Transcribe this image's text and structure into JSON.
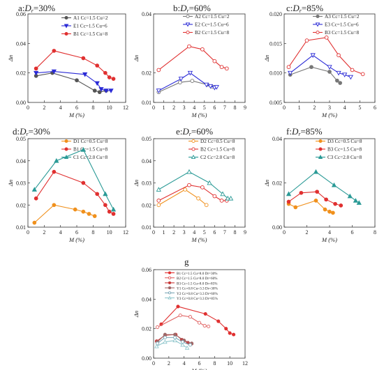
{
  "chart_data": [
    {
      "id": "a",
      "type": "line",
      "title": "a:Dr=30%",
      "xlabel": "M (%)",
      "ylabel": "Δn",
      "xlim": [
        0,
        12
      ],
      "ylim": [
        0,
        0.06
      ],
      "xticks": [
        0,
        2,
        4,
        6,
        8,
        10,
        12
      ],
      "yticks": [
        0.0,
        0.02,
        0.04,
        0.06
      ],
      "legend_position": "top-right",
      "series": [
        {
          "name": "A1 Cc=1.5 Cu=2",
          "color": "#555555",
          "marker": "filled-circle",
          "x": [
            1.0,
            3.0,
            6.0,
            8.2,
            8.8,
            9.6
          ],
          "y": [
            0.018,
            0.02,
            0.015,
            0.008,
            0.007,
            0.008
          ]
        },
        {
          "name": "E1 Cc=1.5 Cu=6",
          "color": "#2a2ad6",
          "marker": "filled-triangle-down",
          "x": [
            1.0,
            3.2,
            7.0,
            8.5,
            9.0,
            9.6,
            10.2
          ],
          "y": [
            0.02,
            0.021,
            0.019,
            0.013,
            0.009,
            0.008,
            0.008
          ]
        },
        {
          "name": "B1 Cc=1.5 Cu=8",
          "color": "#e03030",
          "marker": "filled-circle",
          "x": [
            1.0,
            3.2,
            6.8,
            8.5,
            9.5,
            10.0,
            10.5
          ],
          "y": [
            0.023,
            0.035,
            0.03,
            0.025,
            0.02,
            0.017,
            0.016
          ]
        }
      ]
    },
    {
      "id": "b",
      "type": "line",
      "title": "b:Dr=60%",
      "xlabel": "M (%)",
      "ylabel": "Δn",
      "xlim": [
        0,
        9
      ],
      "ylim": [
        0.01,
        0.04
      ],
      "xticks": [
        0,
        1,
        2,
        3,
        4,
        5,
        6,
        7,
        8,
        9
      ],
      "yticks": [
        0.01,
        0.02,
        0.04
      ],
      "legend_position": "top-right",
      "series": [
        {
          "name": "A2 Cc=1.5 Cu=2",
          "color": "#777777",
          "marker": "open-circle",
          "x": [
            0.5,
            2.6,
            3.8,
            5.3,
            5.8
          ],
          "y": [
            0.0135,
            0.0168,
            0.0173,
            0.016,
            0.0153
          ]
        },
        {
          "name": "E2 Cc=1.5 Cu=6",
          "color": "#2a2ad6",
          "marker": "open-triangle-down",
          "x": [
            0.5,
            2.7,
            3.6,
            5.2,
            5.6,
            6.0,
            6.2
          ],
          "y": [
            0.014,
            0.018,
            0.02,
            0.016,
            0.0155,
            0.015,
            0.0152
          ]
        },
        {
          "name": "B2 Cc=1.5 Cu=8",
          "color": "#e03030",
          "marker": "open-circle",
          "x": [
            0.5,
            3.5,
            4.8,
            6.0,
            6.7,
            7.2
          ],
          "y": [
            0.021,
            0.029,
            0.028,
            0.024,
            0.022,
            0.0215
          ]
        }
      ]
    },
    {
      "id": "c",
      "type": "line",
      "title": "c:Dr=85%",
      "xlabel": "M (%)",
      "ylabel": "Δn",
      "xlim": [
        0,
        6
      ],
      "ylim": [
        0.005,
        0.02
      ],
      "xticks": [
        0,
        1,
        2,
        3,
        4,
        5,
        6
      ],
      "yticks": [
        0.005,
        0.01,
        0.015,
        0.02
      ],
      "legend_position": "top-right",
      "series": [
        {
          "name": "A3 Cc=1.5 Cu=2",
          "color": "#777777",
          "marker": "filled-circle",
          "x": [
            0.4,
            1.8,
            3.0,
            3.5,
            3.7
          ],
          "y": [
            0.0097,
            0.011,
            0.0102,
            0.0087,
            0.0083
          ]
        },
        {
          "name": "E3 Cc=1.5 Cu=6",
          "color": "#2a2ad6",
          "marker": "open-triangle-down",
          "x": [
            0.4,
            1.9,
            3.0,
            3.6,
            4.0,
            4.4
          ],
          "y": [
            0.01,
            0.013,
            0.011,
            0.01,
            0.0097,
            0.0093
          ]
        },
        {
          "name": "B3 Cc=1.5 Cu=8",
          "color": "#e03030",
          "marker": "open-circle",
          "x": [
            0.3,
            1.5,
            2.8,
            3.6,
            4.5,
            5.2
          ],
          "y": [
            0.011,
            0.0155,
            0.016,
            0.013,
            0.0105,
            0.0098
          ]
        }
      ]
    },
    {
      "id": "d",
      "type": "line",
      "title": "d:Dr=30%",
      "xlabel": "M (%)",
      "ylabel": "Δn",
      "xlim": [
        0,
        12
      ],
      "ylim": [
        0.01,
        0.05
      ],
      "xticks": [
        0,
        2,
        4,
        6,
        8,
        10,
        12
      ],
      "yticks": [
        0.01,
        0.02,
        0.03,
        0.04,
        0.05
      ],
      "legend_position": "top-right",
      "series": [
        {
          "name": "D1 Cc=0.5 Cu=8",
          "color": "#f0901c",
          "marker": "filled-circle",
          "x": [
            0.8,
            3.2,
            5.8,
            6.8,
            7.5,
            8.2
          ],
          "y": [
            0.012,
            0.02,
            0.018,
            0.017,
            0.016,
            0.015
          ]
        },
        {
          "name": "B1 Cc=1.5 Cu=8",
          "color": "#e03030",
          "marker": "filled-circle",
          "x": [
            1.0,
            3.2,
            6.8,
            8.5,
            9.5,
            10.0,
            10.5
          ],
          "y": [
            0.023,
            0.035,
            0.03,
            0.025,
            0.02,
            0.017,
            0.016
          ]
        },
        {
          "name": "C1 Cc=2.0 Cu=8",
          "color": "#2a9a96",
          "marker": "filled-triangle-up",
          "x": [
            0.8,
            3.5,
            6.8,
            9.5,
            10.5
          ],
          "y": [
            0.027,
            0.04,
            0.045,
            0.025,
            0.018
          ]
        }
      ]
    },
    {
      "id": "e",
      "type": "line",
      "title": "e:Dr=60%",
      "xlabel": "M (%)",
      "ylabel": "Δn",
      "xlim": [
        0,
        9
      ],
      "ylim": [
        0.01,
        0.05
      ],
      "xticks": [
        0,
        1,
        2,
        3,
        4,
        5,
        6,
        7,
        8,
        9
      ],
      "yticks": [
        0.01,
        0.02,
        0.03,
        0.04,
        0.05
      ],
      "legend_position": "top-right",
      "series": [
        {
          "name": "D2 Cc=0.5 Cu=8",
          "color": "#f0901c",
          "marker": "open-circle",
          "x": [
            0.5,
            3.1,
            4.4,
            5.2
          ],
          "y": [
            0.02,
            0.027,
            0.023,
            0.02
          ]
        },
        {
          "name": "B2 Cc=1.5 Cu=8",
          "color": "#e03030",
          "marker": "open-circle",
          "x": [
            0.5,
            3.5,
            4.8,
            6.0,
            6.7,
            7.2
          ],
          "y": [
            0.022,
            0.029,
            0.028,
            0.024,
            0.022,
            0.022
          ]
        },
        {
          "name": "C2 Cc=2.0 Cu=8",
          "color": "#2a9a96",
          "marker": "open-triangle-up",
          "x": [
            0.5,
            3.5,
            5.5,
            6.8,
            7.3,
            7.6
          ],
          "y": [
            0.027,
            0.035,
            0.03,
            0.025,
            0.023,
            0.023
          ]
        }
      ]
    },
    {
      "id": "f",
      "type": "line",
      "title": "f:Dr=85%",
      "xlabel": "M (%)",
      "ylabel": "Δn",
      "xlim": [
        0,
        8
      ],
      "ylim": [
        0,
        0.04
      ],
      "xticks": [
        0,
        2,
        4,
        6,
        8
      ],
      "yticks": [
        0.0,
        0.02,
        0.04
      ],
      "legend_position": "top-right",
      "series": [
        {
          "name": "D3 Cc=0.5 Cu=8",
          "color": "#f0901c",
          "marker": "filled-circle",
          "x": [
            0.4,
            1.0,
            2.8,
            3.6,
            4.0,
            4.3
          ],
          "y": [
            0.0105,
            0.009,
            0.012,
            0.008,
            0.007,
            0.0065
          ]
        },
        {
          "name": "B3 Cc=1.5 Cu=8",
          "color": "#e03030",
          "marker": "filled-circle",
          "x": [
            0.4,
            1.5,
            2.9,
            3.7,
            4.5,
            5.0
          ],
          "y": [
            0.0115,
            0.0155,
            0.016,
            0.0125,
            0.0105,
            0.0098
          ]
        },
        {
          "name": "C3 Cc=2.0 Cu=8",
          "color": "#2a9a96",
          "marker": "filled-triangle-up",
          "x": [
            0.4,
            2.8,
            4.4,
            5.8,
            6.3,
            6.6
          ],
          "y": [
            0.015,
            0.025,
            0.019,
            0.014,
            0.012,
            0.011
          ]
        }
      ]
    },
    {
      "id": "g",
      "type": "line",
      "title": "g",
      "xlabel": "M (%)",
      "ylabel": "Δn",
      "xlim": [
        0,
        12
      ],
      "ylim": [
        0,
        0.06
      ],
      "xticks": [
        0,
        2,
        4,
        6,
        8,
        10,
        12
      ],
      "yticks": [
        0.0,
        0.02,
        0.04,
        0.06
      ],
      "legend_position": "top-right",
      "series": [
        {
          "name": "B1 Cc=1.5 Cu=8.0 Dr=30%",
          "color": "#e03030",
          "marker": "filled-circle",
          "x": [
            1.0,
            3.2,
            6.8,
            8.5,
            9.5,
            10.0,
            10.5
          ],
          "y": [
            0.023,
            0.035,
            0.03,
            0.025,
            0.02,
            0.017,
            0.016
          ]
        },
        {
          "name": "B2 Cc=1.5 Cu=8.0 Dr=60%",
          "color": "#e06060",
          "marker": "open-circle",
          "x": [
            0.5,
            3.5,
            4.8,
            6.0,
            6.7,
            7.2
          ],
          "y": [
            0.021,
            0.029,
            0.028,
            0.024,
            0.022,
            0.0215
          ]
        },
        {
          "name": "B3 Cc=1.5 Cu=8.0 Dr=85%",
          "color": "#c83838",
          "marker": "filled-circle",
          "x": [
            0.4,
            1.5,
            2.9,
            3.7,
            4.5,
            5.0
          ],
          "y": [
            0.0115,
            0.0155,
            0.016,
            0.0125,
            0.0105,
            0.0098
          ]
        },
        {
          "name": "Y1 Cc=0.8 Cu=3.3 Dr=30%",
          "color": "#a06868",
          "marker": "filled-circle",
          "x": [
            0.5,
            1.5,
            2.8,
            4.0,
            5.0
          ],
          "y": [
            0.011,
            0.016,
            0.016,
            0.012,
            0.01
          ]
        },
        {
          "name": "Y2 Cc=0.8 Cu=3.3 Dr=60%",
          "color": "#7aa6b6",
          "marker": "open-circle",
          "x": [
            0.5,
            1.5,
            2.8,
            3.8,
            4.8
          ],
          "y": [
            0.01,
            0.014,
            0.014,
            0.011,
            0.009
          ]
        },
        {
          "name": "Y3 Cc=0.8 Cu=3.3 Dr=85%",
          "color": "#8fc6cc",
          "marker": "open-triangle-up",
          "x": [
            0.4,
            1.5,
            2.8,
            3.8,
            4.4
          ],
          "y": [
            0.008,
            0.011,
            0.012,
            0.009,
            0.007
          ]
        }
      ]
    }
  ]
}
